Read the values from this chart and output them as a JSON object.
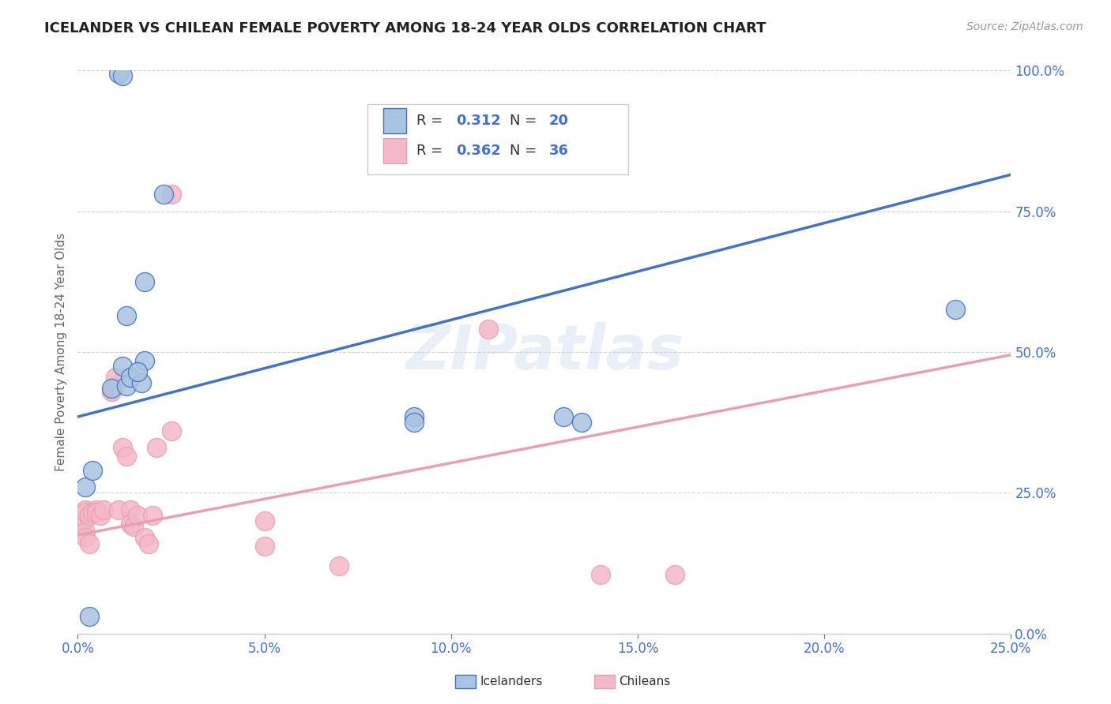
{
  "title": "ICELANDER VS CHILEAN FEMALE POVERTY AMONG 18-24 YEAR OLDS CORRELATION CHART",
  "source": "Source: ZipAtlas.com",
  "xlabel_ticks": [
    "0.0%",
    "5.0%",
    "10.0%",
    "15.0%",
    "20.0%",
    "25.0%"
  ],
  "ylabel_ticks": [
    "0.0%",
    "25.0%",
    "50.0%",
    "75.0%",
    "100.0%"
  ],
  "ylabel": "Female Poverty Among 18-24 Year Olds",
  "legend_r_ice": "0.312",
  "legend_n_ice": "20",
  "legend_r_chi": "0.362",
  "legend_n_chi": "36",
  "color_ice": "#a8c4e0",
  "color_chi": "#f4b8c8",
  "color_line_ice": "#4472c4",
  "color_line_chi": "#e8a0b0",
  "color_axis": "#4472c4",
  "xlim": [
    0.0,
    0.25
  ],
  "ylim": [
    0.0,
    1.0
  ],
  "icelanders_x": [
    0.002,
    0.004,
    0.013,
    0.018,
    0.009,
    0.012,
    0.013,
    0.014,
    0.017,
    0.018,
    0.016,
    0.09,
    0.09,
    0.13,
    0.135,
    0.235,
    0.003,
    0.023,
    0.011,
    0.012
  ],
  "icelanders_y": [
    0.26,
    0.29,
    0.565,
    0.625,
    0.435,
    0.475,
    0.44,
    0.455,
    0.445,
    0.485,
    0.465,
    0.385,
    0.375,
    0.385,
    0.375,
    0.575,
    0.03,
    0.78,
    0.995,
    0.99
  ],
  "chileans_x": [
    0.001,
    0.001,
    0.002,
    0.002,
    0.002,
    0.002,
    0.002,
    0.003,
    0.003,
    0.004,
    0.005,
    0.005,
    0.006,
    0.007,
    0.009,
    0.01,
    0.01,
    0.011,
    0.012,
    0.013,
    0.014,
    0.014,
    0.015,
    0.016,
    0.018,
    0.019,
    0.02,
    0.021,
    0.025,
    0.025,
    0.05,
    0.05,
    0.07,
    0.11,
    0.14,
    0.16
  ],
  "chileans_y": [
    0.195,
    0.21,
    0.205,
    0.22,
    0.215,
    0.18,
    0.17,
    0.16,
    0.21,
    0.215,
    0.22,
    0.215,
    0.21,
    0.22,
    0.43,
    0.44,
    0.455,
    0.22,
    0.33,
    0.315,
    0.22,
    0.195,
    0.19,
    0.21,
    0.17,
    0.16,
    0.21,
    0.33,
    0.78,
    0.36,
    0.2,
    0.155,
    0.12,
    0.54,
    0.105,
    0.105
  ],
  "ice_trend_x": [
    0.0,
    0.25
  ],
  "ice_trend_y": [
    0.385,
    0.815
  ],
  "chi_trend_x": [
    0.0,
    0.25
  ],
  "chi_trend_y": [
    0.175,
    0.495
  ],
  "watermark": "ZIPatlas",
  "background_color": "#ffffff",
  "grid_color": "#cccccc"
}
